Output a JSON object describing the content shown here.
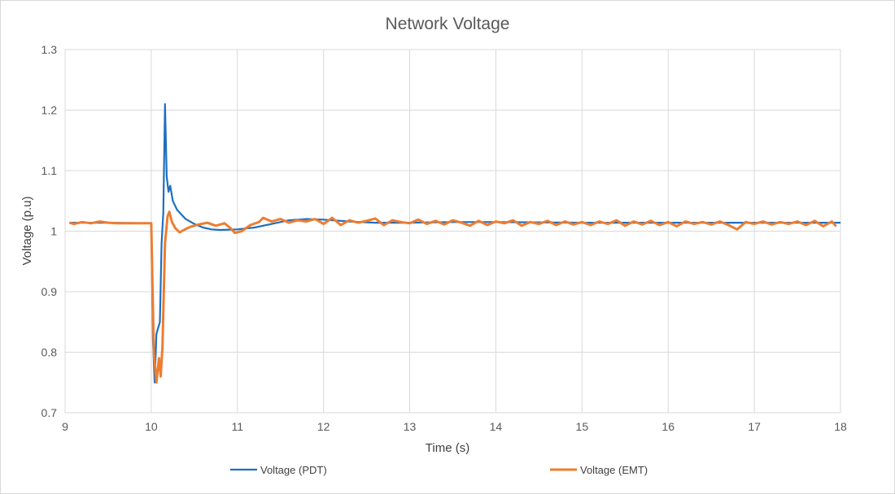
{
  "chart_data": {
    "type": "line",
    "title": "Network Voltage",
    "xlabel": "Time (s)",
    "ylabel": "Voltage (p.u)",
    "xlim": [
      9,
      18
    ],
    "ylim": [
      0.7,
      1.3
    ],
    "xticks": [
      "9",
      "10",
      "11",
      "12",
      "13",
      "14",
      "15",
      "16",
      "17",
      "18"
    ],
    "yticks": [
      "0.7",
      "0.8",
      "0.9",
      "1",
      "1.1",
      "1.2",
      "1.3"
    ],
    "grid": true,
    "legend_position": "bottom",
    "series": [
      {
        "name": "Voltage (PDT)",
        "color": "#1f6fbf",
        "points": [
          [
            9.05,
            1.014
          ],
          [
            9.5,
            1.014
          ],
          [
            10.0,
            1.013
          ],
          [
            10.02,
            0.82
          ],
          [
            10.04,
            0.75
          ],
          [
            10.06,
            0.83
          ],
          [
            10.1,
            0.85
          ],
          [
            10.12,
            0.98
          ],
          [
            10.14,
            1.03
          ],
          [
            10.16,
            1.21
          ],
          [
            10.18,
            1.09
          ],
          [
            10.2,
            1.065
          ],
          [
            10.22,
            1.075
          ],
          [
            10.25,
            1.05
          ],
          [
            10.3,
            1.035
          ],
          [
            10.4,
            1.02
          ],
          [
            10.5,
            1.012
          ],
          [
            10.6,
            1.006
          ],
          [
            10.7,
            1.003
          ],
          [
            10.8,
            1.002
          ],
          [
            11.0,
            1.003
          ],
          [
            11.2,
            1.006
          ],
          [
            11.4,
            1.012
          ],
          [
            11.6,
            1.018
          ],
          [
            11.8,
            1.02
          ],
          [
            12.0,
            1.019
          ],
          [
            12.3,
            1.016
          ],
          [
            12.6,
            1.014
          ],
          [
            13.0,
            1.014
          ],
          [
            13.5,
            1.015
          ],
          [
            14.0,
            1.015
          ],
          [
            15.0,
            1.014
          ],
          [
            16.0,
            1.014
          ],
          [
            17.0,
            1.014
          ],
          [
            18.0,
            1.014
          ]
        ]
      },
      {
        "name": "Voltage (EMT)",
        "color": "#ed7d31",
        "points": [
          [
            9.05,
            1.014
          ],
          [
            9.1,
            1.012
          ],
          [
            9.2,
            1.015
          ],
          [
            9.3,
            1.013
          ],
          [
            9.4,
            1.016
          ],
          [
            9.5,
            1.014
          ],
          [
            9.6,
            1.013
          ],
          [
            10.0,
            1.013
          ],
          [
            10.03,
            0.8
          ],
          [
            10.06,
            0.75
          ],
          [
            10.09,
            0.79
          ],
          [
            10.11,
            0.76
          ],
          [
            10.13,
            0.81
          ],
          [
            10.16,
            0.98
          ],
          [
            10.19,
            1.025
          ],
          [
            10.21,
            1.032
          ],
          [
            10.24,
            1.015
          ],
          [
            10.28,
            1.005
          ],
          [
            10.33,
            0.998
          ],
          [
            10.38,
            1.002
          ],
          [
            10.45,
            1.007
          ],
          [
            10.55,
            1.011
          ],
          [
            10.65,
            1.014
          ],
          [
            10.75,
            1.009
          ],
          [
            10.85,
            1.013
          ],
          [
            10.92,
            1.005
          ],
          [
            10.97,
            0.997
          ],
          [
            11.05,
            1.0
          ],
          [
            11.15,
            1.01
          ],
          [
            11.25,
            1.015
          ],
          [
            11.3,
            1.022
          ],
          [
            11.4,
            1.016
          ],
          [
            11.5,
            1.02
          ],
          [
            11.6,
            1.014
          ],
          [
            11.7,
            1.018
          ],
          [
            11.8,
            1.016
          ],
          [
            11.9,
            1.02
          ],
          [
            12.0,
            1.012
          ],
          [
            12.1,
            1.022
          ],
          [
            12.2,
            1.01
          ],
          [
            12.3,
            1.018
          ],
          [
            12.4,
            1.014
          ],
          [
            12.5,
            1.017
          ],
          [
            12.6,
            1.021
          ],
          [
            12.7,
            1.01
          ],
          [
            12.8,
            1.018
          ],
          [
            12.9,
            1.015
          ],
          [
            13.0,
            1.013
          ],
          [
            13.1,
            1.019
          ],
          [
            13.2,
            1.012
          ],
          [
            13.3,
            1.017
          ],
          [
            13.4,
            1.011
          ],
          [
            13.5,
            1.018
          ],
          [
            13.6,
            1.014
          ],
          [
            13.7,
            1.009
          ],
          [
            13.8,
            1.017
          ],
          [
            13.9,
            1.01
          ],
          [
            14.0,
            1.016
          ],
          [
            14.1,
            1.013
          ],
          [
            14.2,
            1.018
          ],
          [
            14.3,
            1.009
          ],
          [
            14.4,
            1.015
          ],
          [
            14.5,
            1.012
          ],
          [
            14.6,
            1.017
          ],
          [
            14.7,
            1.01
          ],
          [
            14.8,
            1.016
          ],
          [
            14.9,
            1.011
          ],
          [
            15.0,
            1.015
          ],
          [
            15.1,
            1.01
          ],
          [
            15.2,
            1.016
          ],
          [
            15.3,
            1.012
          ],
          [
            15.4,
            1.018
          ],
          [
            15.5,
            1.009
          ],
          [
            15.6,
            1.016
          ],
          [
            15.7,
            1.011
          ],
          [
            15.8,
            1.017
          ],
          [
            15.9,
            1.01
          ],
          [
            16.0,
            1.015
          ],
          [
            16.1,
            1.008
          ],
          [
            16.2,
            1.016
          ],
          [
            16.3,
            1.012
          ],
          [
            16.4,
            1.015
          ],
          [
            16.5,
            1.011
          ],
          [
            16.6,
            1.016
          ],
          [
            16.7,
            1.01
          ],
          [
            16.8,
            1.003
          ],
          [
            16.9,
            1.015
          ],
          [
            17.0,
            1.012
          ],
          [
            17.1,
            1.016
          ],
          [
            17.2,
            1.011
          ],
          [
            17.3,
            1.015
          ],
          [
            17.4,
            1.012
          ],
          [
            17.5,
            1.016
          ],
          [
            17.6,
            1.01
          ],
          [
            17.7,
            1.017
          ],
          [
            17.8,
            1.008
          ],
          [
            17.9,
            1.016
          ],
          [
            17.95,
            1.008
          ]
        ]
      }
    ]
  }
}
